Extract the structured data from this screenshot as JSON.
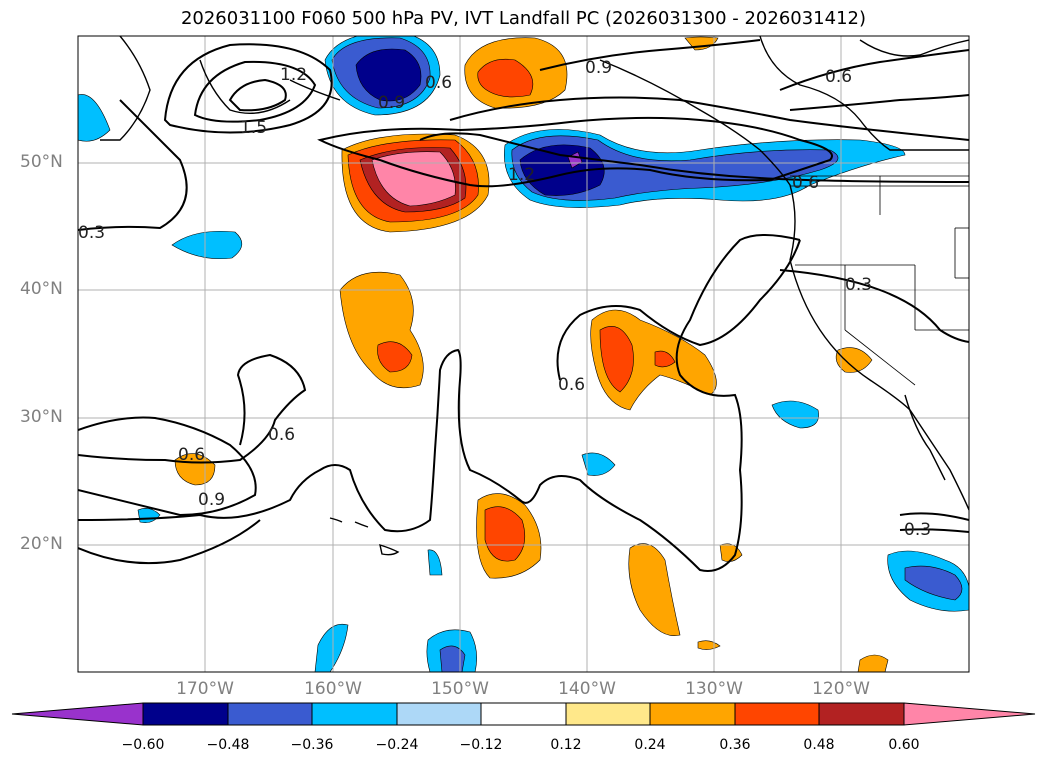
{
  "title": "2026031100 F060 500 hPa PV, IVT Landfall PC (2026031300 - 2026031412)",
  "lat_labels": [
    "50°N",
    "40°N",
    "30°N",
    "20°N"
  ],
  "lon_labels": [
    "170°W",
    "160°W",
    "150°W",
    "140°W",
    "130°W",
    "120°W"
  ],
  "contour_labels": [
    "1.2",
    "1.5",
    "0.6",
    "0.9",
    "0.9",
    "0.6",
    "1.2",
    "0.6",
    "0.3",
    "0.3",
    "0.6",
    "0.6",
    "0.6",
    "0.9",
    "0.3"
  ],
  "colorbar": {
    "tick_labels": [
      "−0.60",
      "−0.48",
      "−0.36",
      "−0.24",
      "−0.12",
      "0.12",
      "0.24",
      "0.36",
      "0.48",
      "0.60"
    ],
    "colors": [
      "#9932cc",
      "#00008b",
      "#3a5bd0",
      "#00bfff",
      "#add8f7",
      "#ffffff",
      "#ffe88a",
      "#ffa500",
      "#ff4500",
      "#b22222",
      "#ff85a8"
    ]
  },
  "map": {
    "extent_lon": [
      -180,
      -110
    ],
    "extent_lat": [
      10,
      60
    ],
    "gridlines": true,
    "field": "500 hPa PV (contours) and IVT landfall PC (shaded)"
  }
}
